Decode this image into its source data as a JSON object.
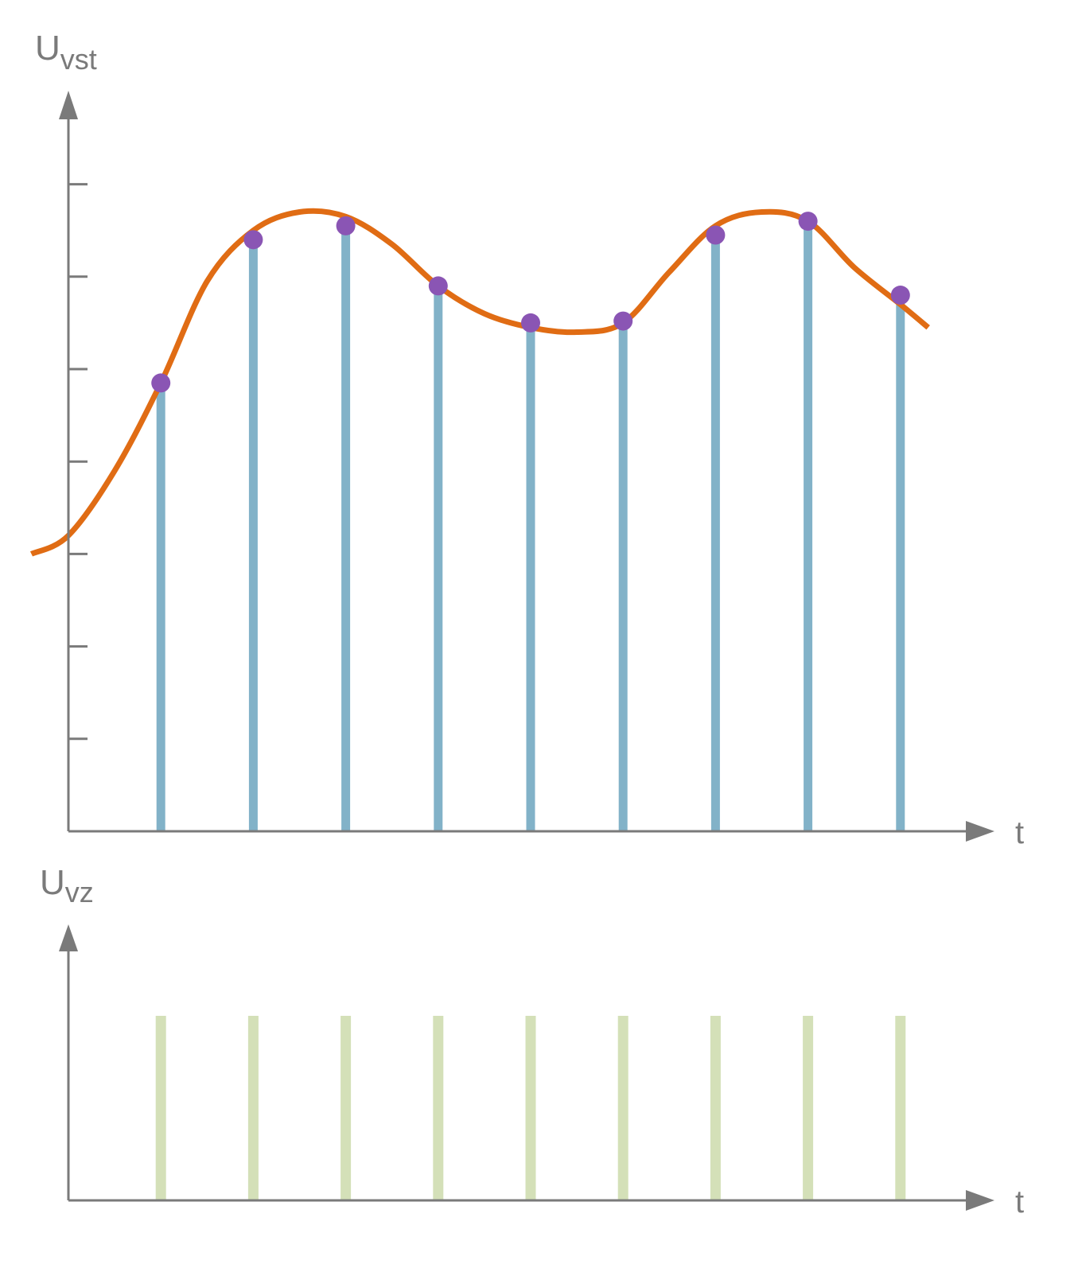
{
  "chart_data": [
    {
      "type": "line",
      "ylabel": {
        "main": "U",
        "sub": "vst"
      },
      "xlabel": "t",
      "ylim": [
        0,
        8
      ],
      "y_ticks": [
        1,
        2,
        3,
        4,
        5,
        6,
        7
      ],
      "signal": {
        "x": [
          -0.4,
          0.0,
          0.5,
          1.0,
          1.5,
          2.0,
          2.5,
          3.0,
          3.5,
          4.0,
          4.5,
          5.0,
          5.5,
          6.0,
          6.5,
          7.0,
          7.5,
          8.0,
          8.5,
          9.0,
          9.3
        ],
        "y": [
          3.0,
          3.2,
          3.9,
          4.85,
          5.95,
          6.5,
          6.7,
          6.65,
          6.35,
          5.9,
          5.6,
          5.45,
          5.4,
          5.5,
          6.05,
          6.55,
          6.7,
          6.6,
          6.1,
          5.7,
          5.45
        ],
        "color": "#e06c14"
      },
      "samples": {
        "x": [
          1,
          2,
          3,
          4,
          5,
          6,
          7,
          8,
          9
        ],
        "y": [
          4.85,
          6.4,
          6.55,
          5.9,
          5.5,
          5.52,
          6.45,
          6.6,
          5.8
        ],
        "stem_color": "#82b2c8",
        "point_color": "#8a55b4"
      }
    },
    {
      "type": "bar",
      "ylabel": {
        "main": "U",
        "sub": "vz"
      },
      "xlabel": "t",
      "ylim": [
        0,
        1.45
      ],
      "pulses": {
        "x": [
          1,
          2,
          3,
          4,
          5,
          6,
          7,
          8,
          9
        ],
        "y": [
          1,
          1,
          1,
          1,
          1,
          1,
          1,
          1,
          1
        ],
        "color": "#d4e0b8"
      }
    }
  ],
  "colors": {
    "axis": "#7a7a7a"
  }
}
